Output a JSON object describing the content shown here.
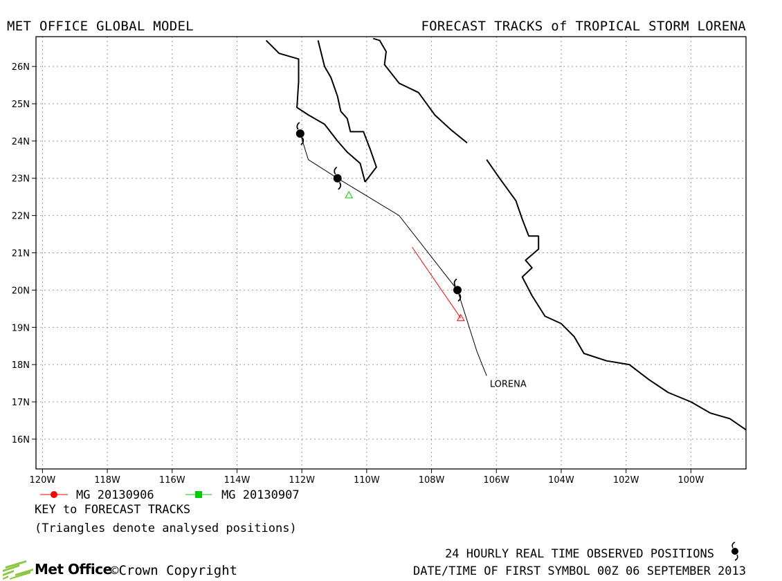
{
  "header": {
    "left_title": "MET OFFICE GLOBAL MODEL",
    "right_title": "FORECAST TRACKS of TROPICAL STORM LORENA"
  },
  "chart_data": {
    "type": "map",
    "lon_range": [
      -120.2,
      -98.3
    ],
    "lat_range": [
      15.2,
      26.8
    ],
    "y_ticks": [
      {
        "value": 16,
        "label": "16N"
      },
      {
        "value": 17,
        "label": "17N"
      },
      {
        "value": 18,
        "label": "18N"
      },
      {
        "value": 19,
        "label": "19N"
      },
      {
        "value": 20,
        "label": "20N"
      },
      {
        "value": 21,
        "label": "21N"
      },
      {
        "value": 22,
        "label": "22N"
      },
      {
        "value": 23,
        "label": "23N"
      },
      {
        "value": 24,
        "label": "24N"
      },
      {
        "value": 25,
        "label": "25N"
      },
      {
        "value": 26,
        "label": "26N"
      }
    ],
    "x_ticks": [
      {
        "value": -120,
        "label": "120W"
      },
      {
        "value": -118,
        "label": "118W"
      },
      {
        "value": -116,
        "label": "116W"
      },
      {
        "value": -114,
        "label": "114W"
      },
      {
        "value": -112,
        "label": "112W"
      },
      {
        "value": -110,
        "label": "110W"
      },
      {
        "value": -108,
        "label": "108W"
      },
      {
        "value": -106,
        "label": "106W"
      },
      {
        "value": -104,
        "label": "104W"
      },
      {
        "value": -102,
        "label": "102W"
      },
      {
        "value": -100,
        "label": "100W"
      }
    ],
    "grid": true,
    "coastlines": [
      {
        "name": "baja-west-coast",
        "points": [
          [
            -113.1,
            26.7
          ],
          [
            -112.7,
            26.35
          ],
          [
            -112.1,
            26.2
          ],
          [
            -112.1,
            25.6
          ],
          [
            -112.15,
            24.9
          ],
          [
            -111.8,
            24.7
          ],
          [
            -111.3,
            24.45
          ],
          [
            -110.9,
            24.0
          ],
          [
            -110.6,
            23.7
          ],
          [
            -110.2,
            23.4
          ],
          [
            -110.05,
            22.9
          ]
        ]
      },
      {
        "name": "baja-east-coast",
        "points": [
          [
            -110.05,
            22.9
          ],
          [
            -109.7,
            23.3
          ],
          [
            -109.9,
            23.8
          ],
          [
            -110.1,
            24.25
          ],
          [
            -110.5,
            24.25
          ],
          [
            -110.6,
            24.6
          ],
          [
            -110.8,
            24.8
          ],
          [
            -110.9,
            25.2
          ],
          [
            -111.1,
            25.7
          ],
          [
            -111.3,
            26.0
          ],
          [
            -111.5,
            26.7
          ]
        ]
      },
      {
        "name": "mainland-north",
        "points": [
          [
            -109.8,
            26.75
          ],
          [
            -109.6,
            26.7
          ],
          [
            -109.4,
            26.4
          ],
          [
            -109.45,
            26.05
          ],
          [
            -109.0,
            25.55
          ],
          [
            -108.4,
            25.3
          ],
          [
            -107.9,
            24.7
          ],
          [
            -107.4,
            24.3
          ],
          [
            -106.9,
            23.95
          ]
        ]
      },
      {
        "name": "mainland-south",
        "points": [
          [
            -106.3,
            23.5
          ],
          [
            -105.9,
            23.0
          ],
          [
            -105.4,
            22.4
          ],
          [
            -105.2,
            21.9
          ],
          [
            -105.0,
            21.45
          ],
          [
            -104.7,
            21.45
          ],
          [
            -104.7,
            21.1
          ],
          [
            -105.1,
            20.8
          ],
          [
            -104.9,
            20.6
          ],
          [
            -105.2,
            20.35
          ],
          [
            -104.9,
            19.85
          ],
          [
            -104.5,
            19.3
          ],
          [
            -104.0,
            19.1
          ],
          [
            -103.6,
            18.75
          ],
          [
            -103.3,
            18.3
          ],
          [
            -102.6,
            18.1
          ],
          [
            -101.9,
            18.0
          ],
          [
            -101.3,
            17.6
          ],
          [
            -100.7,
            17.25
          ],
          [
            -100.0,
            17.0
          ],
          [
            -99.4,
            16.7
          ],
          [
            -98.8,
            16.55
          ],
          [
            -98.3,
            16.25
          ]
        ]
      }
    ],
    "observed_track": {
      "label": "LORENA",
      "label_position": [
        -106.2,
        17.4
      ],
      "points": [
        [
          -112.05,
          24.2
        ],
        [
          -111.8,
          23.5
        ],
        [
          -110.9,
          23.0
        ],
        [
          -109.0,
          22.0
        ],
        [
          -107.2,
          20.0
        ],
        [
          -106.6,
          18.35
        ],
        [
          -106.3,
          17.7
        ]
      ],
      "symbols": [
        [
          -112.05,
          24.2
        ],
        [
          -110.9,
          23.0
        ],
        [
          -107.2,
          20.0
        ]
      ]
    },
    "forecast_tracks": [
      {
        "name": "MG 20130906",
        "color": "#ff0000",
        "points": [
          [
            -108.6,
            21.15
          ],
          [
            -107.1,
            19.25
          ]
        ],
        "analysed_position": [
          -107.1,
          19.25
        ]
      },
      {
        "name": "MG 20130907",
        "color": "#00cc00",
        "points": [
          [
            -110.55,
            22.55
          ]
        ],
        "analysed_position": [
          -110.55,
          22.55
        ]
      }
    ]
  },
  "legend": {
    "items": [
      {
        "label": "MG 20130906",
        "color": "#ff0000",
        "marker": "circle"
      },
      {
        "label": "MG 20130907",
        "color": "#00cc00",
        "marker": "square"
      }
    ],
    "key_title": "KEY to FORECAST TRACKS",
    "note": "(Triangles denote analysed positions)"
  },
  "footer": {
    "observed_text": "24 HOURLY REAL TIME OBSERVED POSITIONS",
    "datetime_text": "DATE/TIME OF FIRST SYMBOL 00Z 06 SEPTEMBER 2013",
    "logo_text": "Met Office",
    "copyright_text": "©Crown Copyright"
  }
}
